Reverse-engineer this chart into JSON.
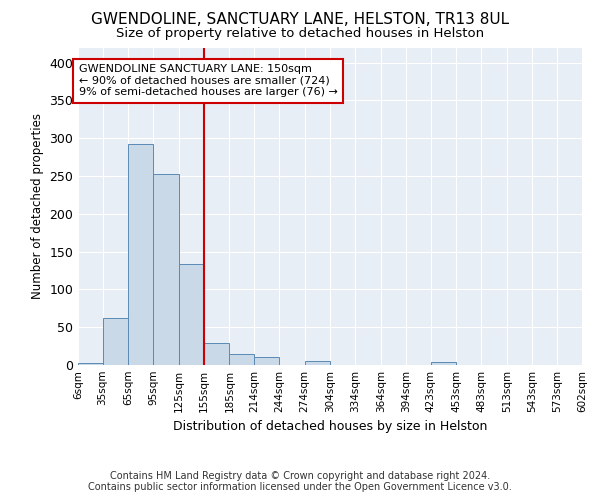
{
  "title": "GWENDOLINE, SANCTUARY LANE, HELSTON, TR13 8UL",
  "subtitle": "Size of property relative to detached houses in Helston",
  "xlabel": "Distribution of detached houses by size in Helston",
  "ylabel": "Number of detached properties",
  "bin_edges": [
    6,
    35,
    65,
    95,
    125,
    155,
    185,
    214,
    244,
    274,
    304,
    334,
    364,
    394,
    423,
    453,
    483,
    513,
    543,
    573,
    602
  ],
  "bar_heights": [
    3,
    62,
    293,
    253,
    133,
    29,
    15,
    10,
    0,
    5,
    0,
    0,
    0,
    0,
    4,
    0,
    0,
    0,
    0,
    0
  ],
  "bar_color": "#c9d9e8",
  "bar_edge_color": "#5a8ab5",
  "vline_x": 155,
  "vline_color": "#cc0000",
  "annotation_line1": "GWENDOLINE SANCTUARY LANE: 150sqm",
  "annotation_line2": "← 90% of detached houses are smaller (724)",
  "annotation_line3": "9% of semi-detached houses are larger (76) →",
  "annotation_box_color": "#cc0000",
  "ylim": [
    0,
    420
  ],
  "yticks": [
    0,
    50,
    100,
    150,
    200,
    250,
    300,
    350,
    400
  ],
  "background_color": "#e8eef5",
  "grid_color": "#ffffff",
  "footer_line1": "Contains HM Land Registry data © Crown copyright and database right 2024.",
  "footer_line2": "Contains public sector information licensed under the Open Government Licence v3.0."
}
